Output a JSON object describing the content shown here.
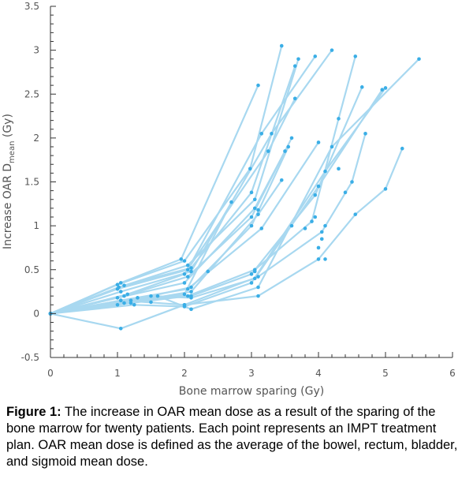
{
  "caption": {
    "label": "Figure 1:",
    "text": " The increase in OAR mean dose as a result of the sparing of the bone marrow for twenty patients. Each point represents an IMPT treatment plan. OAR mean dose is defined as the average of the bowel, rectum, bladder, and sigmoid mean dose."
  },
  "chart_data": {
    "type": "line",
    "title": "",
    "xlabel": "Bone marrow sparing (Gy)",
    "ylabel_main": "Increase OAR D",
    "ylabel_sub": "mean",
    "ylabel_unit": " (Gy)",
    "xlim": [
      0,
      6
    ],
    "ylim": [
      -0.5,
      3.5
    ],
    "xticks": [
      "0",
      "1",
      "2",
      "3",
      "4",
      "5",
      "6"
    ],
    "yticks": [
      "-0.5",
      "0",
      "0.5",
      "1",
      "1.5",
      "2",
      "2.5",
      "3",
      "3.5"
    ],
    "line_color": "#a8d8f0",
    "point_color": "#3aaee6",
    "grid": false,
    "series": [
      {
        "points": [
          [
            0,
            0
          ],
          [
            1.05,
            0.35
          ],
          [
            1.95,
            0.62
          ],
          [
            3.1,
            2.6
          ]
        ]
      },
      {
        "points": [
          [
            0,
            0
          ],
          [
            1.0,
            0.33
          ],
          [
            2.0,
            0.6
          ],
          [
            2.98,
            1.65
          ],
          [
            3.45,
            3.05
          ]
        ]
      },
      {
        "points": [
          [
            0,
            0
          ],
          [
            1.02,
            0.3
          ],
          [
            2.05,
            0.55
          ],
          [
            3.05,
            1.3
          ],
          [
            3.7,
            2.9
          ]
        ]
      },
      {
        "points": [
          [
            0,
            0
          ],
          [
            1.1,
            0.32
          ],
          [
            2.1,
            0.52
          ],
          [
            3.0,
            1.38
          ],
          [
            3.65,
            2.82
          ]
        ]
      },
      {
        "points": [
          [
            0,
            0
          ],
          [
            1.0,
            0.28
          ],
          [
            2.05,
            0.5
          ],
          [
            3.15,
            2.05
          ],
          [
            3.95,
            2.93
          ]
        ]
      },
      {
        "points": [
          [
            0,
            0
          ],
          [
            1.05,
            0.25
          ],
          [
            2.1,
            0.48
          ],
          [
            3.3,
            2.05
          ],
          [
            4.2,
            3.0
          ]
        ]
      },
      {
        "points": [
          [
            0,
            0
          ],
          [
            1.15,
            0.22
          ],
          [
            2.0,
            0.45
          ],
          [
            3.25,
            1.85
          ],
          [
            3.65,
            2.45
          ]
        ]
      },
      {
        "points": [
          [
            0,
            0
          ],
          [
            1.1,
            0.2
          ],
          [
            2.05,
            0.42
          ],
          [
            3.0,
            1.1
          ],
          [
            3.6,
            2.0
          ]
        ]
      },
      {
        "points": [
          [
            0,
            0
          ],
          [
            1.0,
            0.18
          ],
          [
            2.0,
            0.35
          ],
          [
            3.05,
            1.2
          ],
          [
            3.5,
            1.85
          ]
        ]
      },
      {
        "points": [
          [
            0,
            0
          ],
          [
            1.2,
            0.15
          ],
          [
            2.1,
            0.3
          ],
          [
            3.0,
            1.0
          ],
          [
            3.55,
            1.9
          ]
        ]
      },
      {
        "points": [
          [
            0,
            0
          ],
          [
            1.05,
            0.15
          ],
          [
            2.05,
            0.28
          ],
          [
            3.15,
            0.97
          ],
          [
            4.0,
            1.95
          ]
        ]
      },
      {
        "points": [
          [
            0,
            0
          ],
          [
            1.1,
            0.12
          ],
          [
            2.1,
            0.25
          ],
          [
            3.1,
            1.13
          ],
          [
            3.45,
            1.52
          ]
        ]
      },
      {
        "points": [
          [
            0,
            0
          ],
          [
            1.0,
            0.1
          ],
          [
            2.0,
            0.22
          ],
          [
            2.7,
            1.27
          ]
        ]
      },
      {
        "points": [
          [
            0,
            0
          ],
          [
            1.2,
            0.12
          ],
          [
            2.05,
            0.2
          ],
          [
            3.05,
            0.5
          ],
          [
            3.9,
            1.05
          ],
          [
            4.3,
            2.22
          ],
          [
            4.55,
            2.93
          ]
        ]
      },
      {
        "points": [
          [
            0,
            0
          ],
          [
            1.3,
            0.18
          ],
          [
            2.1,
            0.2
          ],
          [
            3.0,
            0.45
          ],
          [
            3.95,
            1.35
          ],
          [
            4.65,
            2.58
          ]
        ]
      },
      {
        "points": [
          [
            0,
            0
          ],
          [
            1.5,
            0.2
          ],
          [
            2.1,
            0.18
          ],
          [
            3.05,
            0.4
          ],
          [
            4.0,
            1.45
          ],
          [
            4.95,
            2.55
          ]
        ]
      },
      {
        "points": [
          [
            0,
            0
          ],
          [
            1.25,
            0.1
          ],
          [
            2.0,
            0.08
          ],
          [
            3.0,
            0.35
          ],
          [
            4.1,
            1.62
          ],
          [
            5.0,
            2.57
          ]
        ]
      },
      {
        "points": [
          [
            0,
            0
          ],
          [
            1.6,
            0.2
          ],
          [
            2.1,
            0.05
          ],
          [
            3.1,
            0.3
          ],
          [
            4.2,
            1.9
          ],
          [
            5.5,
            2.9
          ]
        ]
      },
      {
        "points": [
          [
            0,
            0
          ],
          [
            1.05,
            0.15
          ],
          [
            2.0,
            0.1
          ],
          [
            3.1,
            0.42
          ],
          [
            4.05,
            0.93
          ],
          [
            4.5,
            1.5
          ],
          [
            4.7,
            2.05
          ]
        ]
      },
      {
        "points": [
          [
            0,
            0
          ],
          [
            1.05,
            -0.17
          ],
          [
            2.0,
            0.1
          ],
          [
            3.1,
            0.2
          ],
          [
            4.0,
            0.62
          ],
          [
            4.55,
            1.13
          ],
          [
            5.0,
            1.42
          ],
          [
            5.25,
            1.88
          ]
        ]
      }
    ],
    "extra_points": [
      [
        3.1,
        1.18
      ],
      [
        3.6,
        1.0
      ],
      [
        3.95,
        1.1
      ],
      [
        3.8,
        0.97
      ],
      [
        4.05,
        0.85
      ],
      [
        4.1,
        0.62
      ],
      [
        4.0,
        0.75
      ],
      [
        4.4,
        1.38
      ],
      [
        4.1,
        1.0
      ],
      [
        4.3,
        1.65
      ],
      [
        3.05,
        0.48
      ],
      [
        2.35,
        0.48
      ],
      [
        1.5,
        0.13
      ]
    ]
  }
}
